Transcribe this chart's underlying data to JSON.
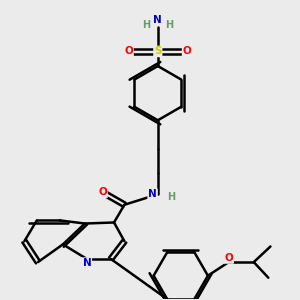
{
  "background_color": "#ebebeb",
  "atom_colors": {
    "C": "#000000",
    "N": "#0000cc",
    "O": "#ff0000",
    "S": "#cccc00",
    "H": "#6a9a6a"
  },
  "bond_color": "#000000",
  "bond_width": 1.8,
  "figsize": [
    3.0,
    3.0
  ],
  "dpi": 100
}
